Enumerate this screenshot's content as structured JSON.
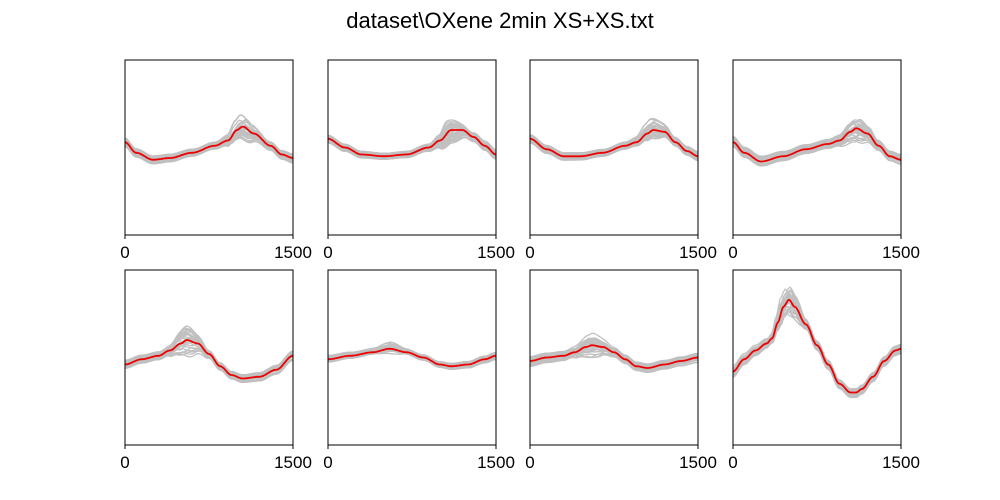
{
  "title": "dataset\\OXene 2min XS+XS.txt",
  "colors": {
    "individual": "#c0c0c0",
    "mean": "#ee0000",
    "axes": "#000000"
  },
  "chart_data": [
    {
      "type": "line",
      "panel": 1,
      "xlim": [
        0,
        1500
      ],
      "ylim": [
        0,
        1
      ],
      "xticks": [
        0,
        1500
      ],
      "xtick_labels": [
        "0",
        "1500"
      ],
      "yticks": [],
      "mean": {
        "x": [
          0,
          100,
          250,
          400,
          600,
          800,
          920,
          1000,
          1050,
          1150,
          1300,
          1400,
          1500
        ],
        "y": [
          0.53,
          0.47,
          0.43,
          0.44,
          0.47,
          0.51,
          0.54,
          0.6,
          0.62,
          0.58,
          0.51,
          0.46,
          0.44
        ]
      },
      "individuals": {
        "count": 30,
        "spread": 0.02,
        "peak_spread": 0.05
      }
    },
    {
      "type": "line",
      "panel": 2,
      "xlim": [
        0,
        1500
      ],
      "ylim": [
        0,
        1
      ],
      "xticks": [
        0,
        1500
      ],
      "xtick_labels": [
        "0",
        "1500"
      ],
      "yticks": [],
      "mean": {
        "x": [
          0,
          150,
          300,
          500,
          700,
          900,
          1000,
          1100,
          1200,
          1300,
          1400,
          1500
        ],
        "y": [
          0.55,
          0.5,
          0.46,
          0.45,
          0.46,
          0.5,
          0.54,
          0.6,
          0.6,
          0.56,
          0.51,
          0.46
        ]
      },
      "individuals": {
        "count": 30,
        "spread": 0.02,
        "peak_spread": 0.06
      }
    },
    {
      "type": "line",
      "panel": 3,
      "xlim": [
        0,
        1500
      ],
      "ylim": [
        0,
        1
      ],
      "xticks": [
        0,
        1500
      ],
      "xtick_labels": [
        "0",
        "1500"
      ],
      "yticks": [],
      "mean": {
        "x": [
          0,
          150,
          300,
          450,
          650,
          850,
          950,
          1050,
          1100,
          1200,
          1300,
          1400,
          1500
        ],
        "y": [
          0.55,
          0.49,
          0.45,
          0.45,
          0.47,
          0.51,
          0.53,
          0.58,
          0.6,
          0.59,
          0.53,
          0.48,
          0.45
        ]
      },
      "individuals": {
        "count": 30,
        "spread": 0.02,
        "peak_spread": 0.05
      }
    },
    {
      "type": "line",
      "panel": 4,
      "xlim": [
        0,
        1500
      ],
      "ylim": [
        0,
        1
      ],
      "xticks": [
        0,
        1500
      ],
      "xtick_labels": [
        "0",
        "1500"
      ],
      "yticks": [],
      "mean": {
        "x": [
          0,
          100,
          250,
          450,
          650,
          850,
          950,
          1050,
          1100,
          1200,
          1300,
          1400,
          1500
        ],
        "y": [
          0.53,
          0.47,
          0.42,
          0.45,
          0.49,
          0.52,
          0.54,
          0.59,
          0.61,
          0.58,
          0.51,
          0.45,
          0.43
        ]
      },
      "individuals": {
        "count": 30,
        "spread": 0.025,
        "peak_spread": 0.05
      }
    },
    {
      "type": "line",
      "panel": 5,
      "xlim": [
        0,
        1500
      ],
      "ylim": [
        0,
        1
      ],
      "xticks": [
        0,
        1500
      ],
      "xtick_labels": [
        "0",
        "1500"
      ],
      "yticks": [],
      "mean": {
        "x": [
          0,
          150,
          300,
          400,
          500,
          550,
          650,
          750,
          850,
          950,
          1050,
          1200,
          1350,
          1500
        ],
        "y": [
          0.46,
          0.49,
          0.51,
          0.54,
          0.58,
          0.6,
          0.58,
          0.52,
          0.45,
          0.4,
          0.38,
          0.39,
          0.43,
          0.51
        ]
      },
      "individuals": {
        "count": 30,
        "spread": 0.025,
        "peak_spread": 0.07
      }
    },
    {
      "type": "line",
      "panel": 6,
      "xlim": [
        0,
        1500
      ],
      "ylim": [
        0,
        1
      ],
      "xticks": [
        0,
        1500
      ],
      "xtick_labels": [
        "0",
        "1500"
      ],
      "yticks": [],
      "mean": {
        "x": [
          0,
          200,
          400,
          550,
          700,
          850,
          1000,
          1100,
          1250,
          1400,
          1500
        ],
        "y": [
          0.49,
          0.51,
          0.53,
          0.55,
          0.53,
          0.5,
          0.46,
          0.45,
          0.46,
          0.49,
          0.51
        ]
      },
      "individuals": {
        "count": 30,
        "spread": 0.015,
        "peak_spread": 0.03
      }
    },
    {
      "type": "line",
      "panel": 7,
      "xlim": [
        0,
        1500
      ],
      "ylim": [
        0,
        1
      ],
      "xticks": [
        0,
        1500
      ],
      "xtick_labels": [
        "0",
        "1500"
      ],
      "yticks": [],
      "mean": {
        "x": [
          0,
          150,
          300,
          400,
          500,
          550,
          650,
          750,
          850,
          950,
          1050,
          1200,
          1350,
          1500
        ],
        "y": [
          0.48,
          0.5,
          0.51,
          0.53,
          0.56,
          0.57,
          0.56,
          0.53,
          0.49,
          0.45,
          0.44,
          0.46,
          0.48,
          0.5
        ]
      },
      "individuals": {
        "count": 30,
        "spread": 0.025,
        "peak_spread": 0.06
      }
    },
    {
      "type": "line",
      "panel": 8,
      "xlim": [
        0,
        1500
      ],
      "ylim": [
        0,
        1
      ],
      "xticks": [
        0,
        1500
      ],
      "xtick_labels": [
        "0",
        "1500"
      ],
      "yticks": [],
      "mean": {
        "x": [
          0,
          100,
          200,
          300,
          350,
          400,
          450,
          500,
          550,
          650,
          750,
          850,
          950,
          1050,
          1100,
          1150,
          1250,
          1350,
          1450,
          1500
        ],
        "y": [
          0.42,
          0.49,
          0.54,
          0.58,
          0.61,
          0.7,
          0.79,
          0.83,
          0.79,
          0.69,
          0.57,
          0.46,
          0.35,
          0.3,
          0.3,
          0.32,
          0.39,
          0.48,
          0.54,
          0.55
        ]
      },
      "individuals": {
        "count": 30,
        "spread": 0.03,
        "peak_spread": 0.06
      }
    }
  ]
}
